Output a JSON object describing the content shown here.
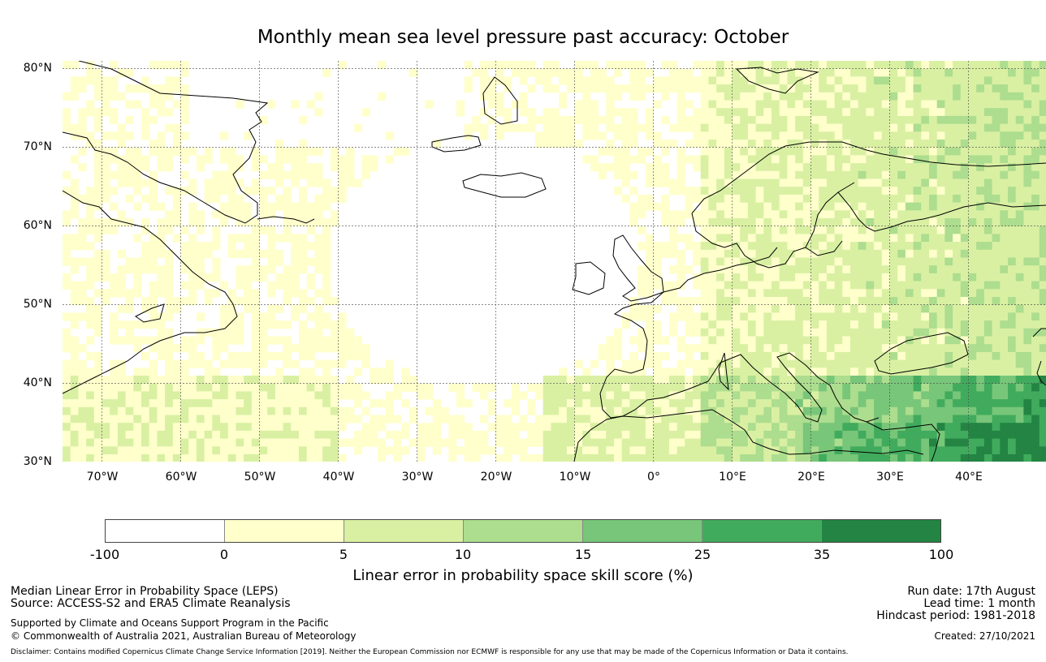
{
  "title": "Monthly mean sea level pressure past accuracy: October",
  "map": {
    "lat_labels": [
      "80°N",
      "70°N",
      "60°N",
      "50°N",
      "40°N",
      "30°N"
    ],
    "lon_labels": [
      "70°W",
      "60°W",
      "50°W",
      "40°W",
      "30°W",
      "20°W",
      "10°W",
      "0°",
      "10°E",
      "20°E",
      "30°E",
      "40°E"
    ],
    "lon_range": [
      -75,
      50
    ],
    "lat_range": [
      30,
      81
    ]
  },
  "colorbar": {
    "ticks": [
      "-100",
      "0",
      "5",
      "10",
      "15",
      "25",
      "35",
      "100"
    ],
    "colors": [
      "#ffffff",
      "#ffffcc",
      "#d9f0a3",
      "#addd8e",
      "#78c679",
      "#41ab5d",
      "#238443"
    ],
    "label": "Linear error in probability space skill score (%)"
  },
  "footer": {
    "line1": "Median Linear Error in Probability Space (LEPS)",
    "line2": "Source: ACCESS-S2 and ERA5 Climate Reanalysis",
    "support": "Supported by Climate and Oceans Support Program in the Pacific",
    "copyright": "© Commonwealth of Australia 2021, Australian Bureau of Meteorology",
    "run_date": "Run date: 17th August",
    "lead_time": "Lead time: 1 month",
    "hindcast": "Hindcast period: 1981-2018",
    "created": "Created: 27/10/2021",
    "disclaimer": "Disclaimer: Contains modified Copernicus Climate Change Service Information [2019]. Neither the European Commission nor ECMWF is responsible for any use that may be made of the Copernicus Information or Data it contains."
  }
}
